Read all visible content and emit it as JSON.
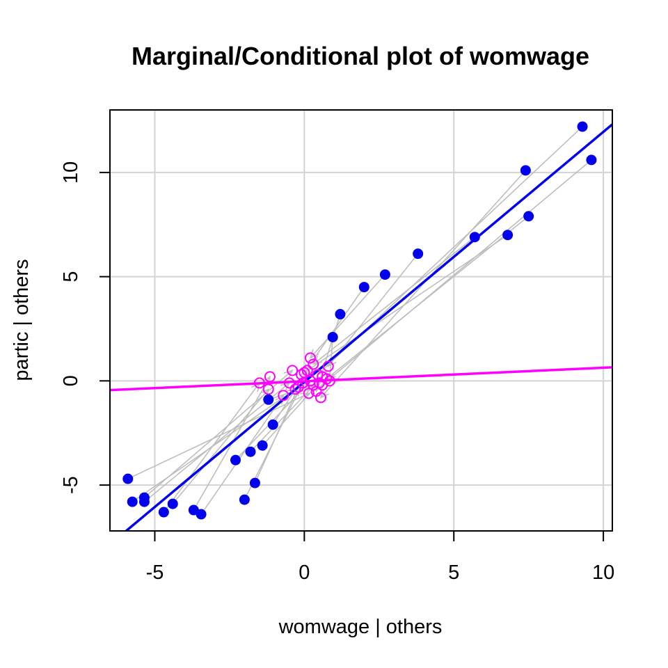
{
  "chart_data": {
    "type": "scatter",
    "title": "Marginal/Conditional plot of womwage",
    "xlabel": "womwage | others",
    "ylabel": "partic  | others",
    "xlim": [
      -6.5,
      10.3
    ],
    "ylim": [
      -7.2,
      13.0
    ],
    "x_ticks": [
      -5,
      0,
      5,
      10
    ],
    "y_ticks": [
      -5,
      0,
      5,
      10
    ],
    "grid": true,
    "colors": {
      "marginal_points": "#0000ee",
      "conditional_points": "#ff00ff",
      "marginal_line": "#0000ee",
      "conditional_line": "#ff00ff",
      "arrows": "#bebebe",
      "grid": "#d3d3d3"
    },
    "series": [
      {
        "role": "marginal",
        "marker": "filled-circle",
        "points": [
          [
            9.3,
            12.2
          ],
          [
            9.6,
            10.6
          ],
          [
            7.4,
            10.1
          ],
          [
            7.5,
            7.9
          ],
          [
            6.8,
            7.0
          ],
          [
            5.7,
            6.9
          ],
          [
            3.8,
            6.1
          ],
          [
            2.7,
            5.1
          ],
          [
            2.0,
            4.5
          ],
          [
            1.2,
            3.2
          ],
          [
            0.95,
            2.1
          ],
          [
            -1.2,
            -0.9
          ],
          [
            -1.05,
            -2.1
          ],
          [
            -1.4,
            -3.1
          ],
          [
            -1.8,
            -3.4
          ],
          [
            -2.3,
            -3.8
          ],
          [
            -1.65,
            -4.9
          ],
          [
            -2.0,
            -5.7
          ],
          [
            -5.9,
            -4.7
          ],
          [
            -5.75,
            -5.8
          ],
          [
            -5.35,
            -5.6
          ],
          [
            -5.35,
            -5.8
          ],
          [
            -4.4,
            -5.9
          ],
          [
            -4.7,
            -6.3
          ],
          [
            -3.7,
            -6.2
          ],
          [
            -3.45,
            -6.4
          ]
        ]
      },
      {
        "role": "conditional",
        "marker": "open-circle",
        "points": [
          [
            0.45,
            0.3
          ],
          [
            0.6,
            -0.2
          ],
          [
            0.55,
            -0.8
          ],
          [
            0.75,
            0.1
          ],
          [
            -0.1,
            0.3
          ],
          [
            0.3,
            0.8
          ],
          [
            0.8,
            0.7
          ],
          [
            0.2,
            1.1
          ],
          [
            0.0,
            0.4
          ],
          [
            0.4,
            -0.5
          ],
          [
            0.85,
            0.0
          ],
          [
            0.3,
            -0.2
          ],
          [
            0.1,
            0.5
          ],
          [
            0.5,
            -0.1
          ],
          [
            0.6,
            0.2
          ],
          [
            0.2,
            0.0
          ],
          [
            -0.2,
            -0.3
          ],
          [
            -0.05,
            -0.1
          ],
          [
            0.15,
            -0.6
          ],
          [
            -0.3,
            -0.4
          ],
          [
            -0.4,
            0.5
          ],
          [
            -0.5,
            -0.1
          ],
          [
            -1.2,
            -0.4
          ],
          [
            -1.5,
            -0.1
          ],
          [
            -1.15,
            0.2
          ],
          [
            -0.7,
            -0.7
          ]
        ]
      }
    ],
    "lines": [
      {
        "role": "marginal",
        "intercept": -0.05,
        "slope": 1.2
      },
      {
        "role": "conditional",
        "intercept": -0.02,
        "slope": 0.065
      }
    ]
  }
}
